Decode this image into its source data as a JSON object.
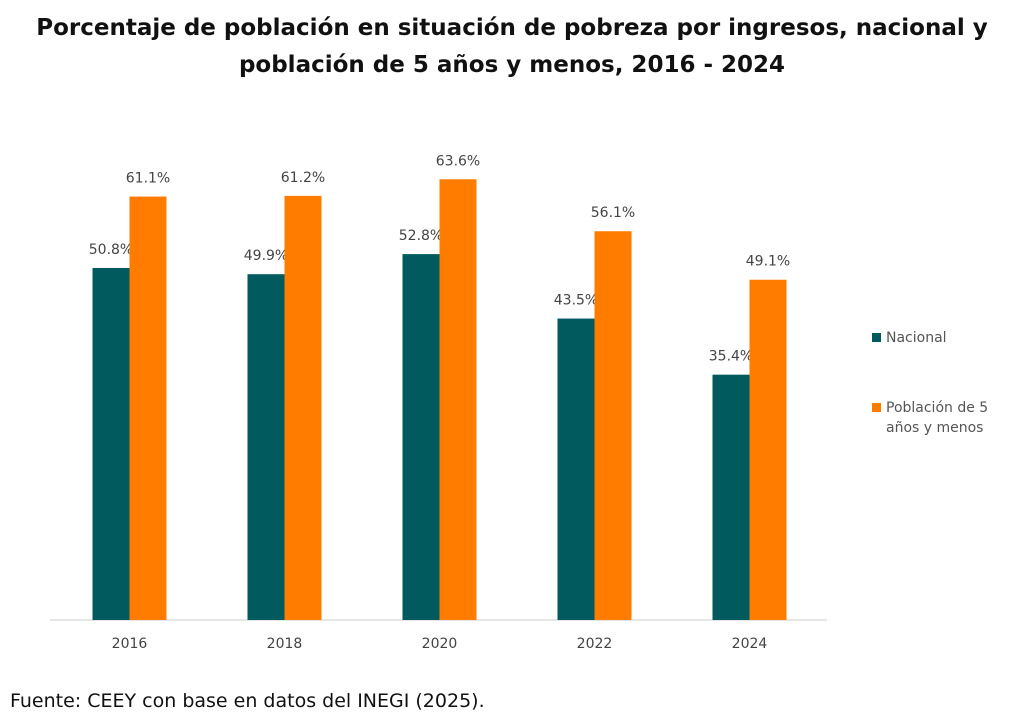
{
  "chart_data": {
    "type": "bar",
    "title": "Porcentaje de población en situación de pobreza por ingresos, nacional y población de 5 años y menos, 2016 - 2024",
    "categories": [
      "2016",
      "2018",
      "2020",
      "2022",
      "2024"
    ],
    "series": [
      {
        "name": "Nacional",
        "color": "#005a5e",
        "values": [
          50.8,
          49.9,
          52.8,
          43.5,
          35.4
        ],
        "value_labels": [
          "50.8%",
          "49.9%",
          "52.8%",
          "43.5%",
          "35.4%"
        ]
      },
      {
        "name": "Población de 5 años y menos",
        "color": "#ff7c00",
        "values": [
          61.1,
          61.2,
          63.6,
          56.1,
          49.1
        ],
        "value_labels": [
          "61.1%",
          "61.2%",
          "63.6%",
          "56.1%",
          "49.1%"
        ]
      }
    ],
    "legend": "right",
    "source": "Fuente: CEEY con base en datos del INEGI (2025)."
  }
}
